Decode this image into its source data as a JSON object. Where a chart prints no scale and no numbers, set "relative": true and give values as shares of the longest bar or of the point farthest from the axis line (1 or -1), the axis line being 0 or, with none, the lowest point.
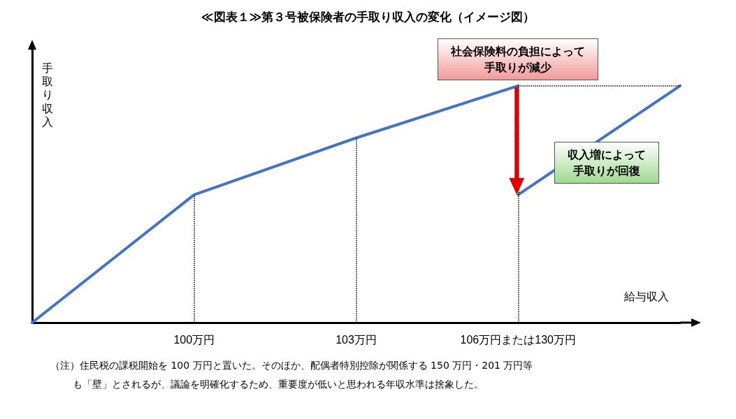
{
  "chart_data": {
    "type": "line",
    "title": "≪図表１≫第３号被保険者の手取り収入の変化（イメージ図）",
    "xlabel": "給与収入",
    "ylabel": "手取り収入",
    "relative": true,
    "categories": [
      null,
      "100万円",
      "103万円",
      "106万円または130万円",
      null
    ],
    "series": [
      {
        "color": "#4472c4",
        "values": [
          0,
          0.54,
          0.78,
          1,
          null
        ]
      },
      {
        "color": "#4472c4",
        "values": [
          null,
          null,
          null,
          0.54,
          1
        ]
      }
    ],
    "ref_lines": [
      {
        "axis": "y",
        "value": 1,
        "line_style": "dotted",
        "color": "#000000"
      },
      {
        "axis": "x",
        "value": "100万円",
        "line_style": "dotted",
        "color": "#000000"
      },
      {
        "axis": "x",
        "value": "103万円",
        "line_style": "dotted",
        "color": "#000000"
      },
      {
        "axis": "x",
        "value": "106万円または130万円",
        "line_style": "dotted",
        "color": "#000000"
      }
    ],
    "annotations": [
      "社会保険料の負担によって手取りが減少",
      "収入増によって手取りが回復",
      "（注）住民税の課税開始を 100 万円と置いた。そのほか、配偶者特別控除が関係する 150 万円・201 万円等も「壁」とされるが、議論を明確化するため、重要度が低いと思われる年収水準は捨象した。"
    ],
    "marker": "none",
    "line_style": "solid"
  }
}
